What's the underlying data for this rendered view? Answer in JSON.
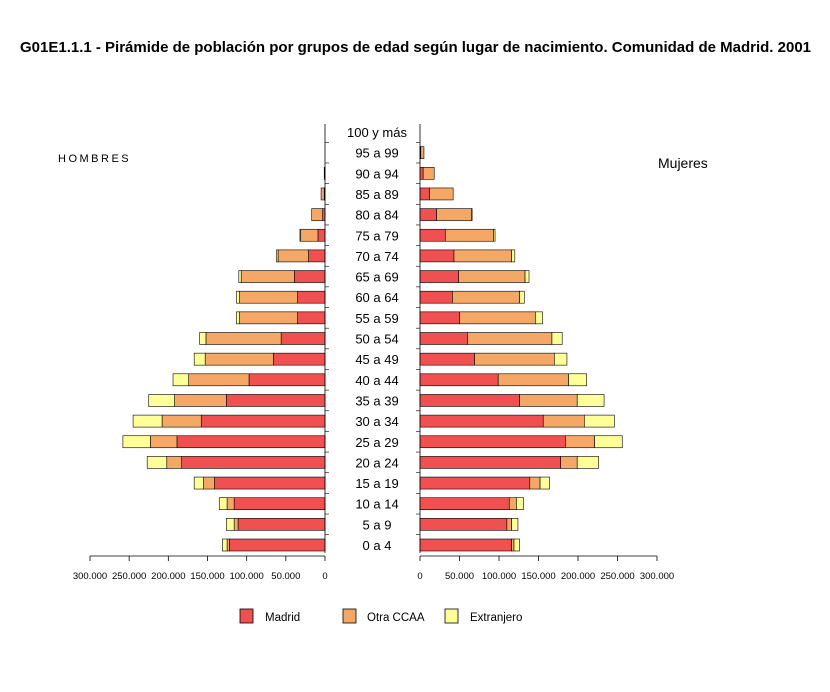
{
  "title": "G01E1.1.1 - Pirámide de población por grupos de edad según lugar de nacimiento. Comunidad de Madrid. 2001",
  "colors": {
    "Madrid": "#f05050",
    "Otra CCAA": "#f5a866",
    "Extranjero": "#ffff99"
  },
  "chart_data": {
    "type": "bar",
    "orientation": "horizontal-pyramid",
    "title": "G01E1.1.1 - Pirámide de población por grupos de edad según lugar de nacimiento. Comunidad de Madrid. 2001",
    "left_label": "HOMBRES",
    "right_label": "Mujeres",
    "categories": [
      "0 a 4",
      "5 a 9",
      "10 a 14",
      "15 a 19",
      "20 a 24",
      "25 a 29",
      "30 a 34",
      "35 a 39",
      "40 a 44",
      "45 a 49",
      "50 a 54",
      "55 a 59",
      "60 a 64",
      "65 a 69",
      "70 a 74",
      "75 a 79",
      "80 a 84",
      "85 a 89",
      "90 a 94",
      "95 a 99",
      "100 y más"
    ],
    "xlim": [
      0,
      300000
    ],
    "x_ticks_left": [
      "300.000",
      "250.000",
      "200.000",
      "150.000",
      "100.000",
      "50.000",
      "0"
    ],
    "x_ticks_right": [
      "0",
      "50.000",
      "100.000",
      "150.000",
      "200.000",
      "250.000",
      "300.000"
    ],
    "stack_order": [
      "Madrid",
      "Otra CCAA",
      "Extranjero"
    ],
    "hombres": {
      "Madrid": [
        122000,
        111000,
        116000,
        141000,
        183000,
        189000,
        158000,
        126000,
        97000,
        66000,
        56000,
        35000,
        35000,
        39000,
        21000,
        9000,
        3000,
        1000,
        0,
        0,
        0
      ],
      "Otra CCAA": [
        3000,
        5000,
        9000,
        14000,
        19000,
        34000,
        50000,
        66000,
        77000,
        87000,
        96000,
        74000,
        74000,
        68000,
        39000,
        22000,
        14000,
        4000,
        1000,
        0,
        0
      ],
      "Extranjero": [
        6000,
        10000,
        10000,
        12000,
        25000,
        35000,
        37000,
        33000,
        20000,
        14000,
        8000,
        4000,
        4000,
        3000,
        2000,
        1000,
        0,
        0,
        0,
        0,
        0
      ]
    },
    "mujeres": {
      "Madrid": [
        116000,
        110000,
        113000,
        139000,
        178000,
        184000,
        156000,
        126000,
        99000,
        69000,
        60000,
        50000,
        41000,
        49000,
        43000,
        32000,
        21000,
        12000,
        4000,
        1000,
        0
      ],
      "Otra CCAA": [
        3000,
        6000,
        9000,
        13000,
        21000,
        37000,
        52000,
        73000,
        89000,
        101000,
        107000,
        96000,
        85000,
        84000,
        73000,
        61000,
        44000,
        30000,
        14000,
        4000,
        0
      ],
      "Extranjero": [
        7000,
        8000,
        9000,
        12000,
        27000,
        35000,
        38000,
        34000,
        23000,
        16000,
        13000,
        9000,
        6000,
        5000,
        4000,
        2000,
        1000,
        0,
        0,
        0,
        0
      ]
    },
    "legend": [
      "Madrid",
      "Otra CCAA",
      "Extranjero"
    ],
    "legend_position": "bottom-center",
    "grid": false
  }
}
